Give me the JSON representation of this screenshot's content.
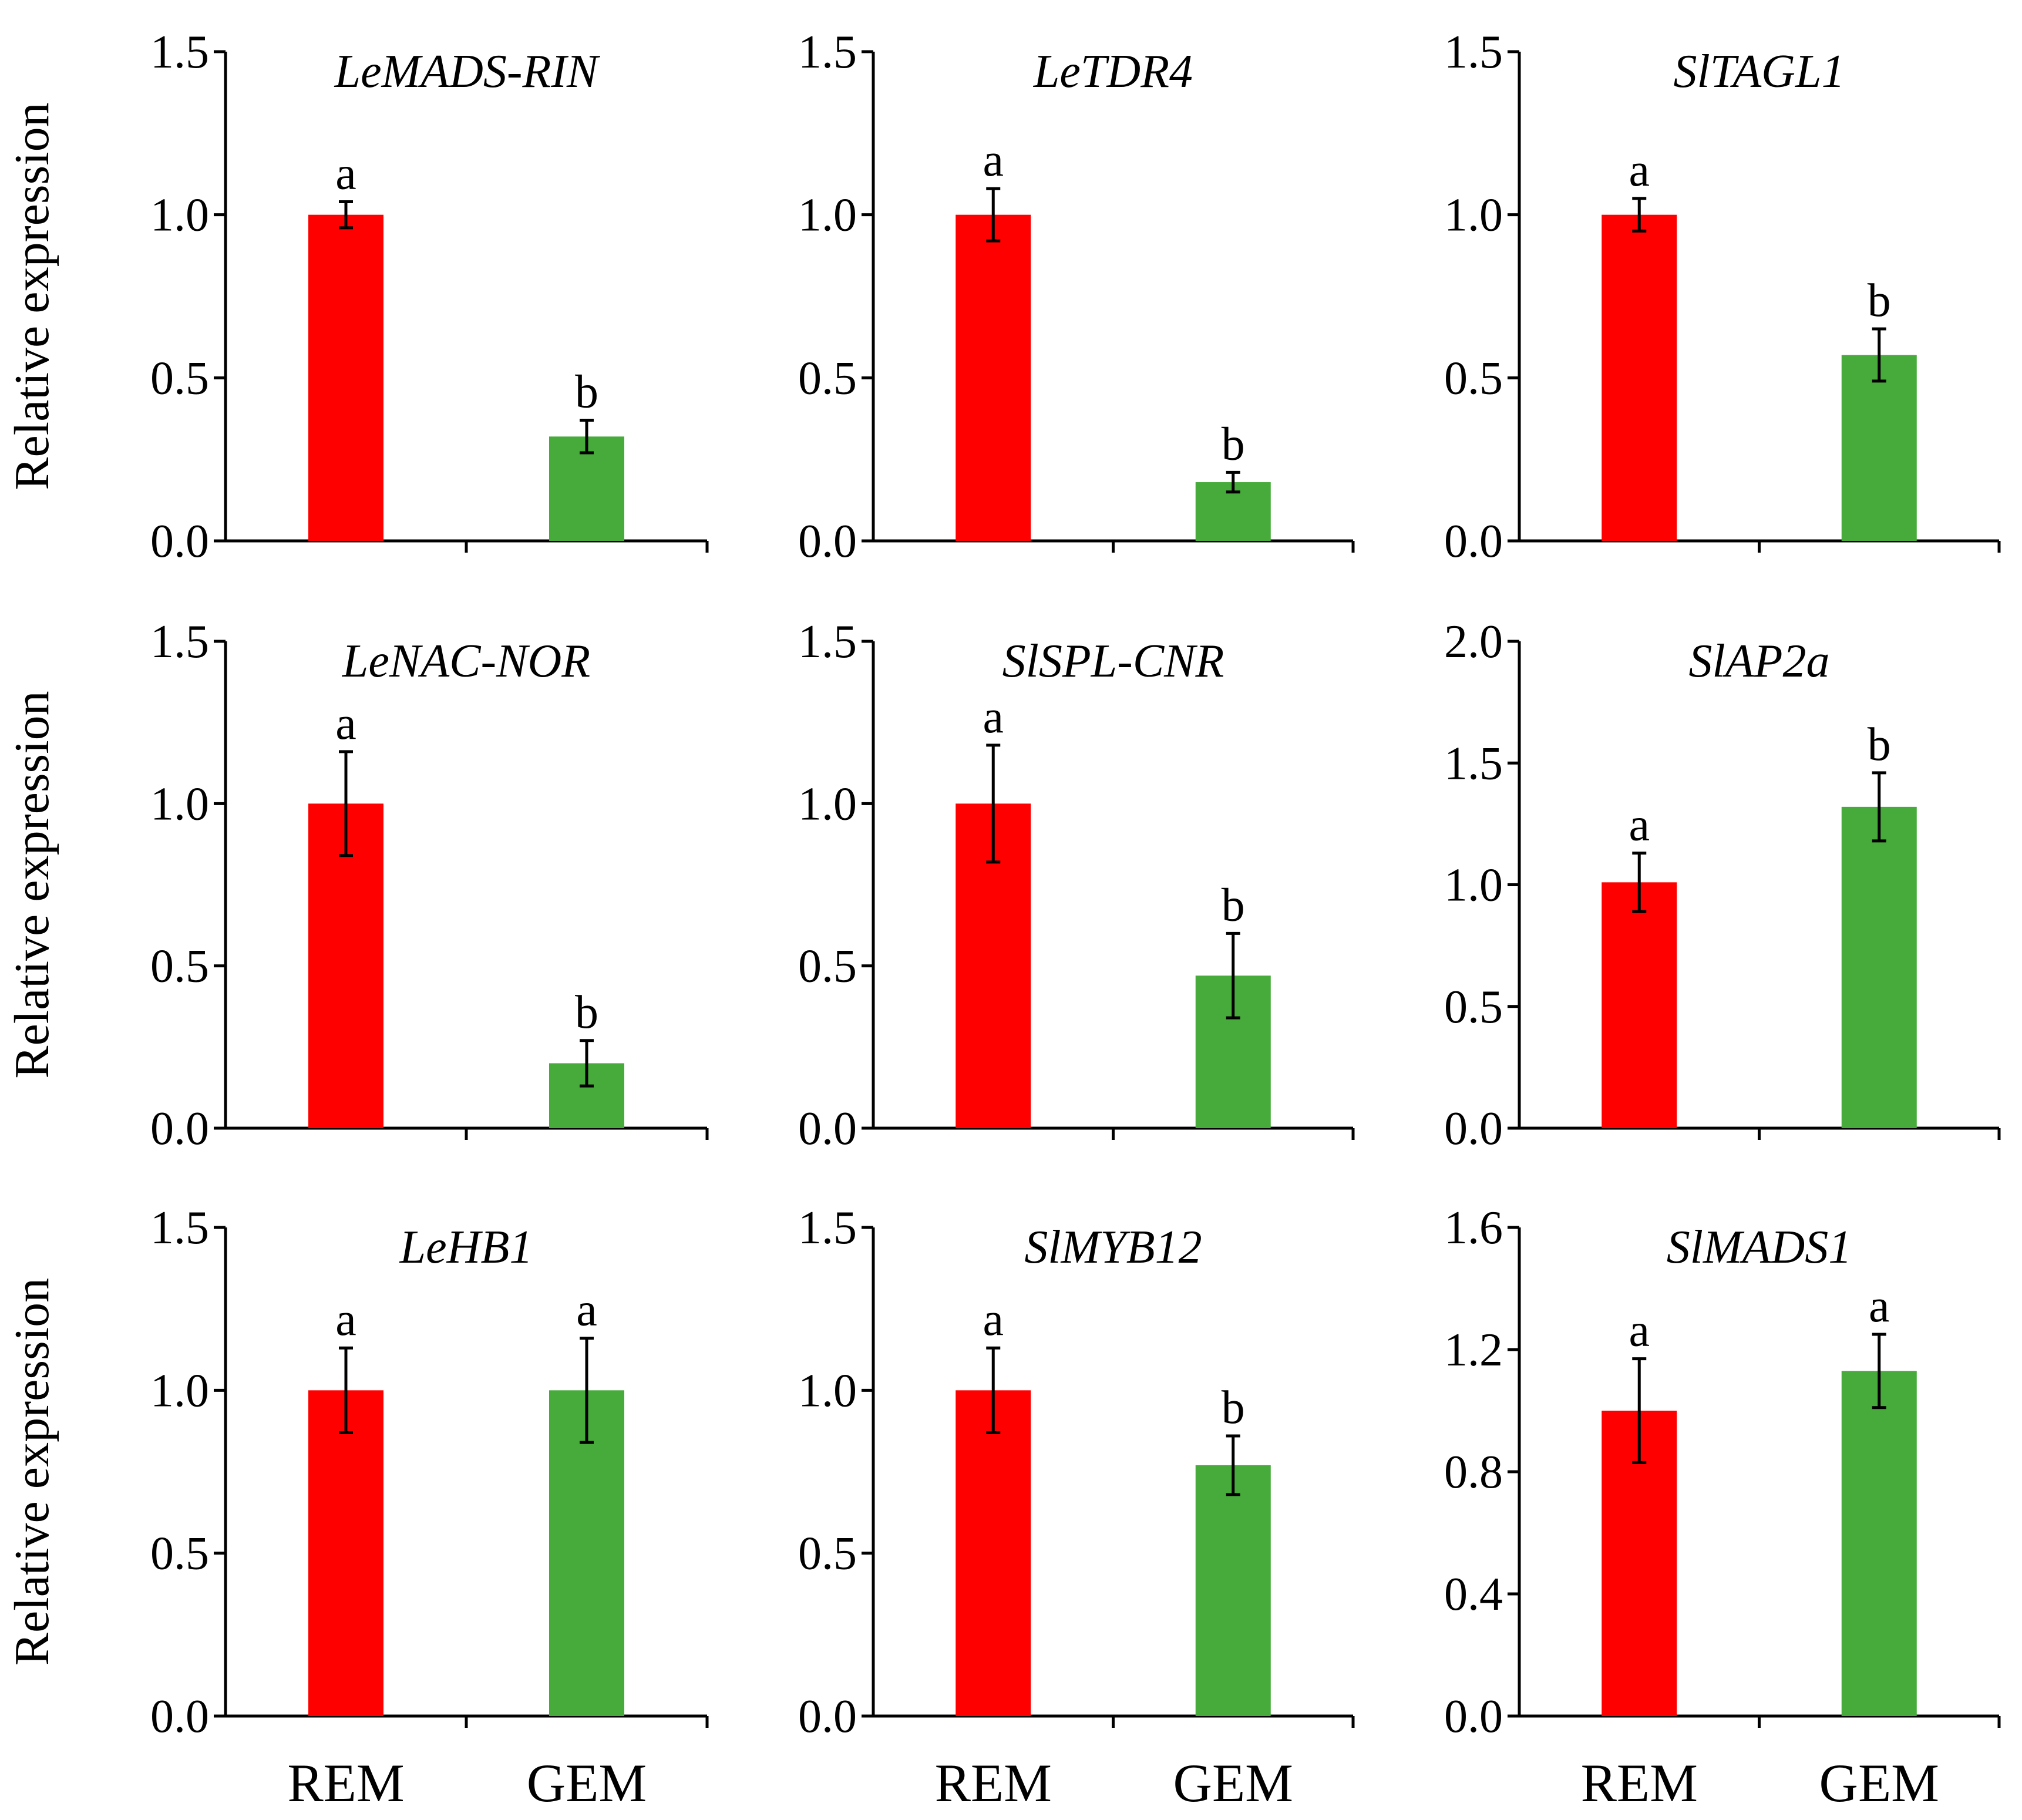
{
  "chart_data": [
    {
      "type": "bar",
      "title": "LeMADS-RIN",
      "ylabel": "Relative expression",
      "categories": [
        "REM",
        "GEM"
      ],
      "values": [
        1.0,
        0.32
      ],
      "errors": [
        0.04,
        0.05
      ],
      "significance": [
        "a",
        "b"
      ],
      "ylim": [
        0,
        1.5
      ],
      "yticks": [
        "0.0",
        "0.5",
        "1.0",
        "1.5"
      ],
      "xticklabels": [
        "",
        ""
      ]
    },
    {
      "type": "bar",
      "title": "LeTDR4",
      "ylabel": "",
      "categories": [
        "REM",
        "GEM"
      ],
      "values": [
        1.0,
        0.18
      ],
      "errors": [
        0.08,
        0.03
      ],
      "significance": [
        "a",
        "b"
      ],
      "ylim": [
        0,
        1.5
      ],
      "yticks": [
        "0.0",
        "0.5",
        "1.0",
        "1.5"
      ],
      "xticklabels": [
        "",
        ""
      ]
    },
    {
      "type": "bar",
      "title": "SlTAGL1",
      "ylabel": "",
      "categories": [
        "REM",
        "GEM"
      ],
      "values": [
        1.0,
        0.57
      ],
      "errors": [
        0.05,
        0.08
      ],
      "significance": [
        "a",
        "b"
      ],
      "ylim": [
        0,
        1.5
      ],
      "yticks": [
        "0.0",
        "0.5",
        "1.0",
        "1.5"
      ],
      "xticklabels": [
        "",
        ""
      ]
    },
    {
      "type": "bar",
      "title": "LeNAC-NOR",
      "ylabel": "Relative expression",
      "categories": [
        "REM",
        "GEM"
      ],
      "values": [
        1.0,
        0.2
      ],
      "errors": [
        0.16,
        0.07
      ],
      "significance": [
        "a",
        "b"
      ],
      "ylim": [
        0,
        1.5
      ],
      "yticks": [
        "0.0",
        "0.5",
        "1.0",
        "1.5"
      ],
      "xticklabels": [
        "",
        ""
      ]
    },
    {
      "type": "bar",
      "title": "SlSPL-CNR",
      "ylabel": "",
      "categories": [
        "REM",
        "GEM"
      ],
      "values": [
        1.0,
        0.47
      ],
      "errors": [
        0.18,
        0.13
      ],
      "significance": [
        "a",
        "b"
      ],
      "ylim": [
        0,
        1.5
      ],
      "yticks": [
        "0.0",
        "0.5",
        "1.0",
        "1.5"
      ],
      "xticklabels": [
        "",
        ""
      ]
    },
    {
      "type": "bar",
      "title": "SlAP2a",
      "ylabel": "",
      "categories": [
        "REM",
        "GEM"
      ],
      "values": [
        1.01,
        1.32
      ],
      "errors": [
        0.12,
        0.14
      ],
      "significance": [
        "a",
        "b"
      ],
      "ylim": [
        0,
        2.0
      ],
      "yticks": [
        "0.0",
        "0.5",
        "1.0",
        "1.5",
        "2.0"
      ],
      "xticklabels": [
        "",
        ""
      ]
    },
    {
      "type": "bar",
      "title": "LeHB1",
      "ylabel": "Relative expression",
      "categories": [
        "REM",
        "GEM"
      ],
      "values": [
        1.0,
        1.0
      ],
      "errors": [
        0.13,
        0.16
      ],
      "significance": [
        "a",
        "a"
      ],
      "ylim": [
        0,
        1.5
      ],
      "yticks": [
        "0.0",
        "0.5",
        "1.0",
        "1.5"
      ],
      "xticklabels": [
        "REM",
        "GEM"
      ]
    },
    {
      "type": "bar",
      "title": "SlMYB12",
      "ylabel": "",
      "categories": [
        "REM",
        "GEM"
      ],
      "values": [
        1.0,
        0.77
      ],
      "errors": [
        0.13,
        0.09
      ],
      "significance": [
        "a",
        "b"
      ],
      "ylim": [
        0,
        1.5
      ],
      "yticks": [
        "0.0",
        "0.5",
        "1.0",
        "1.5"
      ],
      "xticklabels": [
        "REM",
        "GEM"
      ]
    },
    {
      "type": "bar",
      "title": "SlMADS1",
      "ylabel": "",
      "categories": [
        "REM",
        "GEM"
      ],
      "values": [
        1.0,
        1.13
      ],
      "errors": [
        0.17,
        0.12
      ],
      "significance": [
        "a",
        "a"
      ],
      "ylim": [
        0,
        1.6
      ],
      "yticks": [
        "0.0",
        "0.4",
        "0.8",
        "1.2",
        "1.6"
      ],
      "xticklabels": [
        "REM",
        "GEM"
      ]
    }
  ],
  "colors": {
    "REM": "#ff0000",
    "GEM": "#46ab3a",
    "axis": "#000000"
  }
}
